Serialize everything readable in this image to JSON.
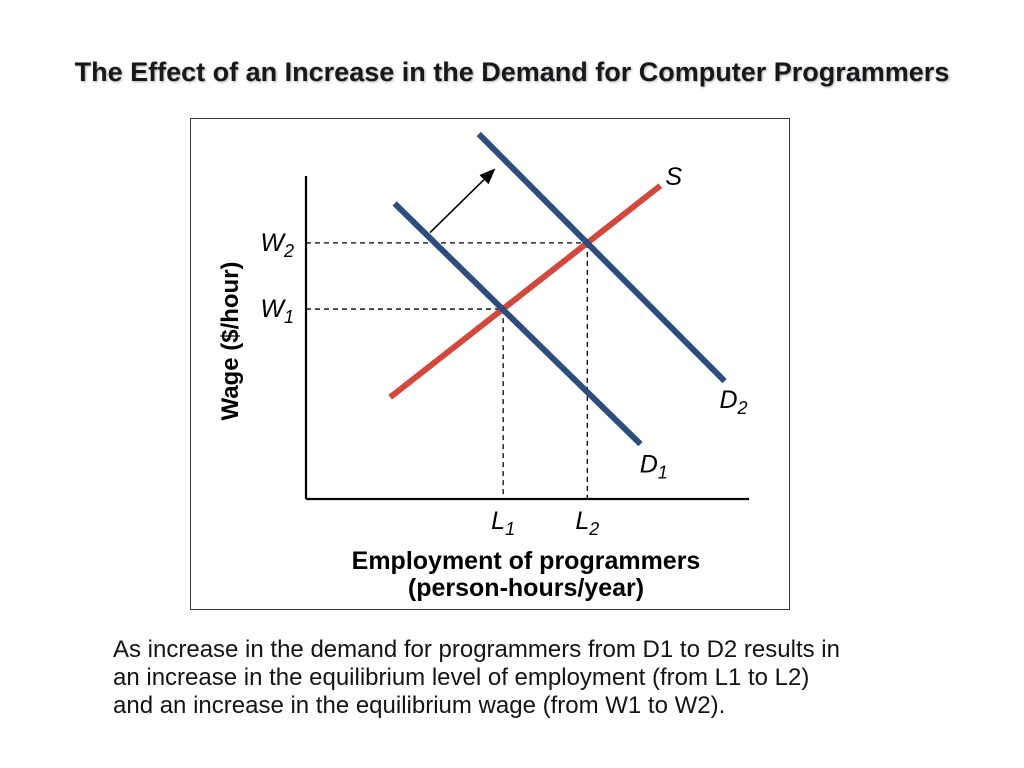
{
  "title": "The Effect of an Increase in the Demand for Computer Programmers",
  "caption": {
    "lines": [
      "As increase in the demand for programmers from D1 to D2 results in",
      "an increase in the equilibrium level of employment (from L1 to L2)",
      "and an increase in the equilibrium wage (from W1 to W2)."
    ]
  },
  "chart_data": {
    "type": "line",
    "subtype": "supply-demand-diagram",
    "title": "The Effect of an Increase in the Demand for Computer Programmers",
    "ylabel": "Wage ($/hour)",
    "xlabel_lines": [
      "Employment of programmers",
      "(person-hours/year)"
    ],
    "axes": {
      "x_range": [
        0,
        100
      ],
      "y_range": [
        0,
        100
      ],
      "numeric_ticks": false,
      "grid": false
    },
    "colors": {
      "supply": "#d1493d",
      "demand": "#2d4d7f",
      "axis": "#000000",
      "guides": "#000000"
    },
    "series": [
      {
        "name": "S",
        "role": "supply",
        "color": "#d1493d",
        "points": [
          [
            19,
            31.5
          ],
          [
            80,
            97
          ]
        ],
        "label": {
          "base": "S",
          "sub": ""
        },
        "label_pos": [
          83,
          100
        ]
      },
      {
        "name": "D1",
        "role": "demand-original",
        "color": "#2d4d7f",
        "points": [
          [
            20,
            91.5
          ],
          [
            75.5,
            17
          ]
        ],
        "label": {
          "base": "D",
          "sub": "1"
        },
        "label_pos": [
          78.5,
          11
        ]
      },
      {
        "name": "D2",
        "role": "demand-increased",
        "color": "#2d4d7f",
        "points": [
          [
            39,
            113
          ],
          [
            94.5,
            36.5
          ]
        ],
        "label": {
          "base": "D",
          "sub": "2"
        },
        "label_pos": [
          96.5,
          31
        ]
      }
    ],
    "equilibria": [
      {
        "employment": 44.5,
        "wage": 58.8,
        "wage_label": {
          "base": "W",
          "sub": "1"
        },
        "employment_label": {
          "base": "L",
          "sub": "1"
        }
      },
      {
        "employment": 63.5,
        "wage": 79.3,
        "wage_label": {
          "base": "W",
          "sub": "2"
        },
        "employment_label": {
          "base": "L",
          "sub": "2"
        }
      }
    ],
    "shift_arrow": {
      "from": [
        28,
        82.5
      ],
      "to": [
        42.5,
        102
      ]
    },
    "legend": "none"
  }
}
